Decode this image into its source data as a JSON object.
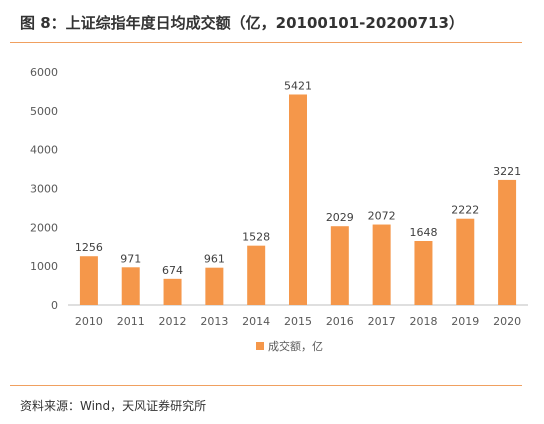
{
  "header": {
    "title": "图 8：上证综指年度日均成交额（亿，20100101-20200713）"
  },
  "footer": {
    "source": "资料来源：Wind，天风证券研究所"
  },
  "colors": {
    "bar": "#f5974a",
    "rule": "#f0a060",
    "axis": "#bfbfbf",
    "text": "#595959"
  },
  "chart_data": {
    "type": "bar",
    "categories": [
      "2010",
      "2011",
      "2012",
      "2013",
      "2014",
      "2015",
      "2016",
      "2017",
      "2018",
      "2019",
      "2020"
    ],
    "series": [
      {
        "name": "成交额，亿",
        "values": [
          1256,
          971,
          674,
          961,
          1528,
          5421,
          2029,
          2072,
          1648,
          2222,
          3221
        ]
      }
    ],
    "ylim": [
      0,
      6000
    ],
    "yticks": [
      0,
      1000,
      2000,
      3000,
      4000,
      5000,
      6000
    ],
    "grid": false,
    "legend_position": "bottom",
    "data_labels": true
  }
}
